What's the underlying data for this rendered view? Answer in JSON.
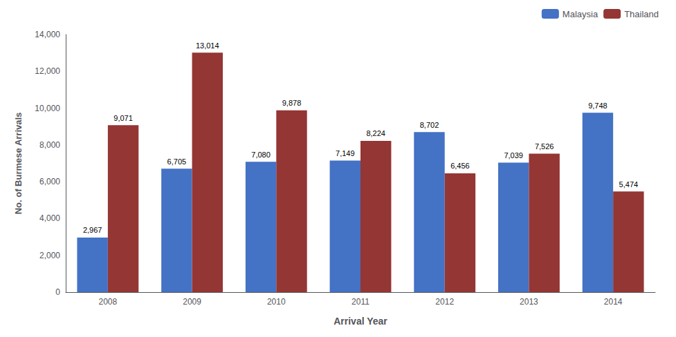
{
  "chart_data": {
    "type": "bar",
    "xlabel": "Arrival Year",
    "ylabel": "No. of Burmese Arrivals",
    "categories": [
      "2008",
      "2009",
      "2010",
      "2011",
      "2012",
      "2013",
      "2014"
    ],
    "series": [
      {
        "name": "Malaysia",
        "color": "#4472C4",
        "values": [
          2967,
          6705,
          7080,
          7149,
          8702,
          7039,
          9748
        ],
        "value_labels": [
          "2,967",
          "6,705",
          "7,080",
          "7,149",
          "8,702",
          "7,039",
          "9,748"
        ]
      },
      {
        "name": "Thailand",
        "color": "#943634",
        "values": [
          9071,
          13014,
          9878,
          8224,
          6456,
          7526,
          5474
        ],
        "value_labels": [
          "9,071",
          "13,014",
          "9,878",
          "8,224",
          "6,456",
          "7,526",
          "5,474"
        ]
      }
    ],
    "ylim": [
      0,
      14000
    ],
    "yticks": [
      0,
      {
        "value": 2000,
        "label": "2,000"
      },
      {
        "value": 4000,
        "label": "4,000"
      },
      {
        "value": 6000,
        "label": "6,000"
      },
      {
        "value": 8000,
        "label": "8,000"
      },
      {
        "value": 10000,
        "label": "10,000"
      },
      {
        "value": 12000,
        "label": "12,000"
      },
      {
        "value": 14000,
        "label": "14,000"
      }
    ],
    "grid": false,
    "legend": "upper right",
    "data_labels": true
  }
}
